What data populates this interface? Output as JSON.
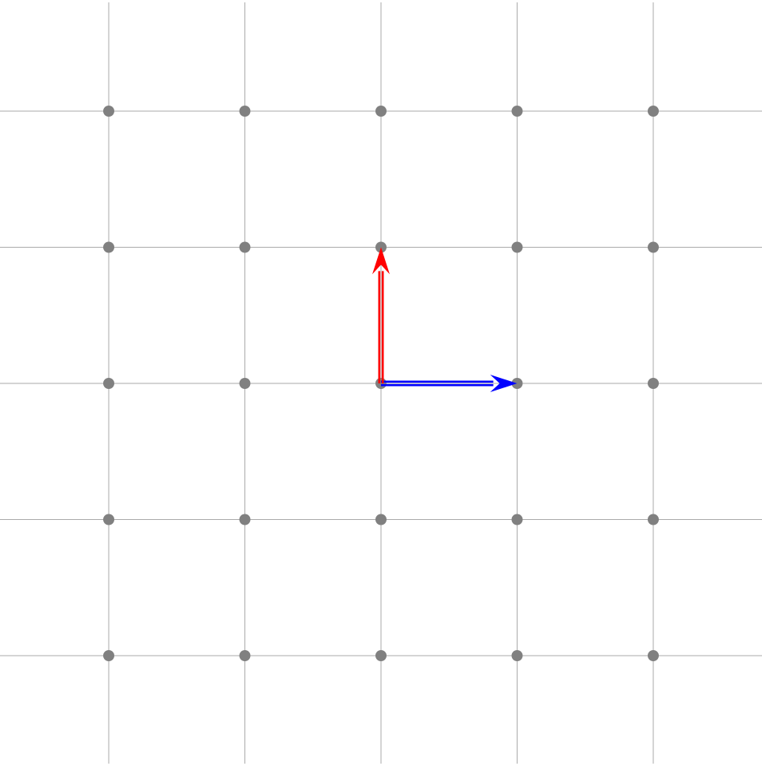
{
  "diagram": {
    "type": "lattice-basis-vectors",
    "grid": {
      "x_values": [
        -2,
        -1,
        0,
        1,
        2
      ],
      "y_values": [
        2,
        1,
        0,
        -1,
        -2
      ],
      "line_color": "#aaaaaa",
      "point_color": "#808080"
    },
    "vectors": [
      {
        "id": "e1",
        "from": [
          0,
          0
        ],
        "to": [
          1,
          0
        ],
        "color": "#0000ff"
      },
      {
        "id": "e2",
        "from": [
          0,
          0
        ],
        "to": [
          0,
          1
        ],
        "color": "#ff0000"
      }
    ]
  }
}
